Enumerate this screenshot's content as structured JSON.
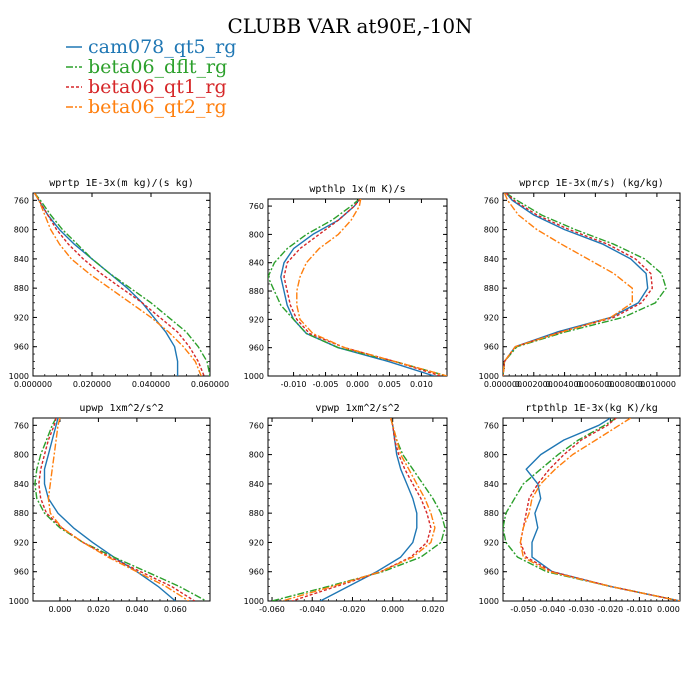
{
  "title": "CLUBB VAR at90E,-10N",
  "legend": [
    {
      "label": "cam078_qt5_rg",
      "color": "#1f77b4",
      "dash": ""
    },
    {
      "label": "beta06_dflt_rg",
      "color": "#2ca02c",
      "dash": "7,2,2,2"
    },
    {
      "label": "beta06_qt1_rg",
      "color": "#d62728",
      "dash": "3,2"
    },
    {
      "label": "beta06_qt2_rg",
      "color": "#ff7f0e",
      "dash": "7,2,2,2"
    }
  ],
  "chart_data": [
    {
      "type": "line",
      "title": "wprtp  1E-3x(m kg)/(s kg)",
      "xlim": [
        0,
        0.06
      ],
      "ylim": [
        1000,
        750
      ],
      "xticks": [
        0,
        0.02,
        0.04,
        0.06
      ],
      "xtick_labels": [
        "0.000000",
        "0.020000",
        "0.040000",
        "0.060000"
      ],
      "yticks": [
        760,
        800,
        840,
        880,
        920,
        960,
        1000
      ],
      "y": [
        750,
        760,
        780,
        800,
        820,
        840,
        860,
        880,
        900,
        920,
        940,
        960,
        980,
        1000
      ],
      "series": [
        {
          "name": "cam078_qt5_rg",
          "x": [
            0.0005,
            0.002,
            0.005,
            0.009,
            0.014,
            0.02,
            0.026,
            0.032,
            0.037,
            0.041,
            0.045,
            0.048,
            0.049,
            0.049
          ]
        },
        {
          "name": "beta06_dflt_rg",
          "x": [
            0.0005,
            0.0025,
            0.006,
            0.01,
            0.015,
            0.02,
            0.026,
            0.033,
            0.04,
            0.046,
            0.052,
            0.056,
            0.059,
            0.06
          ]
        },
        {
          "name": "beta06_qt1_rg",
          "x": [
            0.0005,
            0.002,
            0.005,
            0.008,
            0.012,
            0.017,
            0.023,
            0.03,
            0.037,
            0.043,
            0.049,
            0.053,
            0.056,
            0.058
          ]
        },
        {
          "name": "beta06_qt2_rg",
          "x": [
            0.0005,
            0.002,
            0.004,
            0.006,
            0.009,
            0.013,
            0.019,
            0.026,
            0.033,
            0.04,
            0.046,
            0.051,
            0.055,
            0.057
          ]
        }
      ]
    },
    {
      "type": "line",
      "title": "wpthlp  1x(m K)/s",
      "xlim": [
        -0.014,
        0.014
      ],
      "ylim": [
        1000,
        750
      ],
      "xticks": [
        -0.01,
        -0.005,
        0.0,
        0.005,
        0.01
      ],
      "xtick_labels": [
        "-0.010",
        "-0.005",
        "0.000",
        "0.005",
        "0.010"
      ],
      "yticks": [
        760,
        800,
        840,
        880,
        920,
        960,
        1000
      ],
      "y": [
        750,
        760,
        780,
        800,
        820,
        840,
        860,
        880,
        900,
        920,
        940,
        960,
        980,
        1000
      ],
      "series": [
        {
          "name": "cam078_qt5_rg",
          "x": [
            0.0003,
            -0.0005,
            -0.003,
            -0.007,
            -0.01,
            -0.0115,
            -0.012,
            -0.0115,
            -0.011,
            -0.01,
            -0.008,
            -0.003,
            0.005,
            0.012
          ]
        },
        {
          "name": "beta06_dflt_rg",
          "x": [
            0.0003,
            -0.001,
            -0.004,
            -0.008,
            -0.011,
            -0.013,
            -0.014,
            -0.013,
            -0.012,
            -0.01,
            -0.008,
            -0.003,
            0.006,
            0.014
          ]
        },
        {
          "name": "beta06_qt1_rg",
          "x": [
            0.0004,
            -0.0005,
            -0.003,
            -0.006,
            -0.009,
            -0.011,
            -0.0115,
            -0.011,
            -0.0105,
            -0.0095,
            -0.0075,
            -0.002,
            0.006,
            0.013
          ]
        },
        {
          "name": "beta06_qt2_rg",
          "x": [
            0.0005,
            0.0003,
            -0.001,
            -0.003,
            -0.006,
            -0.008,
            -0.009,
            -0.0095,
            -0.0095,
            -0.009,
            -0.007,
            -0.002,
            0.006,
            0.014
          ]
        }
      ]
    },
    {
      "type": "line",
      "title": "wprcp  1E-3x(m/s) (kg/kg)",
      "xlim": [
        0,
        0.0115
      ],
      "ylim": [
        1000,
        750
      ],
      "xticks": [
        0,
        0.002,
        0.004,
        0.006,
        0.008,
        0.01
      ],
      "xtick_labels": [
        "0.000000",
        "0.002000",
        "0.004000",
        "0.006000",
        "0.008000",
        "0.010000"
      ],
      "yticks": [
        760,
        800,
        840,
        880,
        920,
        960,
        1000
      ],
      "y": [
        750,
        760,
        780,
        800,
        820,
        840,
        860,
        880,
        900,
        920,
        940,
        960,
        980,
        1000
      ],
      "series": [
        {
          "name": "cam078_qt5_rg",
          "x": [
            0.0002,
            0.0006,
            0.002,
            0.004,
            0.0065,
            0.0083,
            0.0093,
            0.0094,
            0.0088,
            0.007,
            0.0035,
            0.0008,
            0.0001,
            0.0
          ]
        },
        {
          "name": "beta06_dflt_rg",
          "x": [
            0.0002,
            0.0009,
            0.0025,
            0.0047,
            0.0072,
            0.0092,
            0.0103,
            0.0106,
            0.0099,
            0.0078,
            0.004,
            0.0009,
            0.0001,
            0.0
          ]
        },
        {
          "name": "beta06_qt1_rg",
          "x": [
            0.0002,
            0.0007,
            0.0022,
            0.0043,
            0.0068,
            0.0086,
            0.0096,
            0.0097,
            0.009,
            0.0072,
            0.0037,
            0.0008,
            0.0001,
            0.0
          ]
        },
        {
          "name": "beta06_qt2_rg",
          "x": [
            0.0001,
            0.0003,
            0.001,
            0.0022,
            0.0038,
            0.0055,
            0.0072,
            0.0084,
            0.0084,
            0.007,
            0.0038,
            0.0008,
            0.0001,
            0.0
          ]
        }
      ]
    },
    {
      "type": "line",
      "title": "upwp  1xm^2/s^2",
      "xlim": [
        -0.014,
        0.078
      ],
      "ylim": [
        1000,
        750
      ],
      "xticks": [
        0.0,
        0.02,
        0.04,
        0.06
      ],
      "xtick_labels": [
        "0.000",
        "0.020",
        "0.040",
        "0.060"
      ],
      "yticks": [
        760,
        800,
        840,
        880,
        920,
        960,
        1000
      ],
      "y": [
        750,
        760,
        780,
        800,
        820,
        840,
        860,
        880,
        900,
        920,
        940,
        960,
        980,
        1000
      ],
      "series": [
        {
          "name": "cam078_qt5_rg",
          "x": [
            -0.001,
            -0.002,
            -0.004,
            -0.006,
            -0.008,
            -0.008,
            -0.006,
            -0.001,
            0.007,
            0.017,
            0.028,
            0.04,
            0.051,
            0.06
          ]
        },
        {
          "name": "beta06_dflt_rg",
          "x": [
            -0.002,
            -0.004,
            -0.007,
            -0.01,
            -0.012,
            -0.013,
            -0.012,
            -0.008,
            0.0,
            0.012,
            0.028,
            0.045,
            0.062,
            0.076
          ]
        },
        {
          "name": "beta06_qt1_rg",
          "x": [
            -0.002,
            -0.003,
            -0.006,
            -0.008,
            -0.01,
            -0.011,
            -0.01,
            -0.007,
            0.001,
            0.012,
            0.026,
            0.042,
            0.058,
            0.07
          ]
        },
        {
          "name": "beta06_qt2_rg",
          "x": [
            0.0,
            -0.001,
            -0.002,
            -0.003,
            -0.004,
            -0.005,
            -0.006,
            -0.005,
            0.001,
            0.012,
            0.025,
            0.04,
            0.055,
            0.067
          ]
        }
      ]
    },
    {
      "type": "line",
      "title": "vpwp  1xm^2/s^2",
      "xlim": [
        -0.062,
        0.027
      ],
      "ylim": [
        1000,
        750
      ],
      "xticks": [
        -0.06,
        -0.04,
        -0.02,
        0.0,
        0.02
      ],
      "xtick_labels": [
        "-0.060",
        "-0.040",
        "-0.020",
        "0.000",
        "0.020"
      ],
      "yticks": [
        760,
        800,
        840,
        880,
        920,
        960,
        1000
      ],
      "y": [
        750,
        760,
        780,
        800,
        820,
        840,
        860,
        880,
        900,
        920,
        940,
        960,
        980,
        1000
      ],
      "series": [
        {
          "name": "cam078_qt5_rg",
          "x": [
            -0.001,
            0.0,
            0.001,
            0.002,
            0.004,
            0.007,
            0.01,
            0.012,
            0.012,
            0.01,
            0.004,
            -0.008,
            -0.022,
            -0.036
          ]
        },
        {
          "name": "beta06_dflt_rg",
          "x": [
            -0.001,
            0.0,
            0.002,
            0.005,
            0.01,
            0.015,
            0.02,
            0.024,
            0.026,
            0.024,
            0.014,
            -0.005,
            -0.032,
            -0.06
          ]
        },
        {
          "name": "beta06_qt1_rg",
          "x": [
            -0.001,
            0.0,
            0.001,
            0.003,
            0.006,
            0.01,
            0.014,
            0.017,
            0.019,
            0.017,
            0.009,
            -0.006,
            -0.028,
            -0.05
          ]
        },
        {
          "name": "beta06_qt2_rg",
          "x": [
            -0.001,
            0.0,
            0.002,
            0.004,
            0.008,
            0.012,
            0.016,
            0.019,
            0.021,
            0.019,
            0.01,
            -0.006,
            -0.03,
            -0.055
          ]
        }
      ]
    },
    {
      "type": "line",
      "title": "rtpthlp  1E-3x(kg K)/kg",
      "xlim": [
        -0.057,
        0.004
      ],
      "ylim": [
        1000,
        750
      ],
      "xticks": [
        -0.05,
        -0.04,
        -0.03,
        -0.02,
        -0.01,
        0.0
      ],
      "xtick_labels": [
        "-0.050",
        "-0.040",
        "-0.030",
        "-0.020",
        "-0.010",
        "0.000"
      ],
      "yticks": [
        760,
        800,
        840,
        880,
        920,
        960,
        1000
      ],
      "y": [
        750,
        760,
        780,
        800,
        820,
        840,
        860,
        880,
        900,
        920,
        940,
        960,
        980,
        1000
      ],
      "series": [
        {
          "name": "cam078_qt5_rg",
          "x": [
            -0.02,
            -0.024,
            -0.036,
            -0.044,
            -0.049,
            -0.045,
            -0.044,
            -0.046,
            -0.045,
            -0.047,
            -0.047,
            -0.04,
            -0.02,
            0.004
          ]
        },
        {
          "name": "beta06_dflt_rg",
          "x": [
            -0.018,
            -0.022,
            -0.031,
            -0.038,
            -0.044,
            -0.05,
            -0.053,
            -0.056,
            -0.057,
            -0.056,
            -0.052,
            -0.042,
            -0.02,
            0.004
          ]
        },
        {
          "name": "beta06_qt1_rg",
          "x": [
            -0.018,
            -0.021,
            -0.03,
            -0.036,
            -0.041,
            -0.045,
            -0.048,
            -0.049,
            -0.05,
            -0.051,
            -0.049,
            -0.04,
            -0.02,
            0.004
          ]
        },
        {
          "name": "beta06_qt2_rg",
          "x": [
            -0.013,
            -0.017,
            -0.025,
            -0.033,
            -0.039,
            -0.044,
            -0.047,
            -0.048,
            -0.05,
            -0.051,
            -0.05,
            -0.041,
            -0.02,
            0.004
          ]
        }
      ]
    }
  ]
}
